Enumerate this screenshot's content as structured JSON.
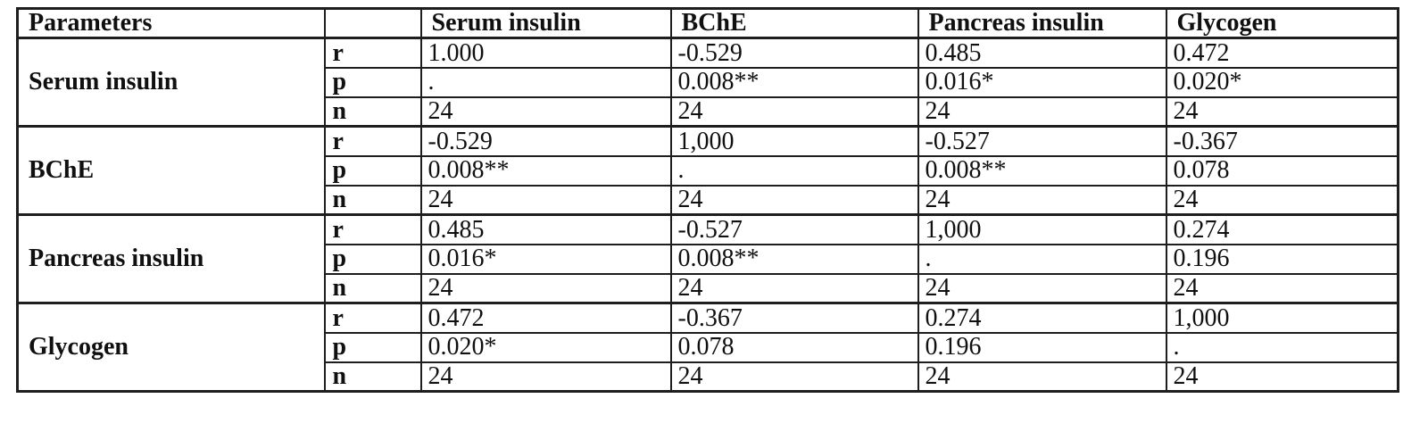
{
  "table": {
    "header": [
      "Parameters",
      "",
      "Serum insulin",
      "BChE",
      "Pancreas insulin",
      "Glycogen"
    ],
    "groups": [
      {
        "parameter": "Serum insulin",
        "rows": [
          {
            "stat": "r",
            "values": [
              "1.000",
              "-0.529",
              "0.485",
              "0.472"
            ]
          },
          {
            "stat": "p",
            "values": [
              ".",
              "0.008**",
              "0.016*",
              "0.020*"
            ]
          },
          {
            "stat": "n",
            "values": [
              "24",
              "24",
              "24",
              "24"
            ]
          }
        ]
      },
      {
        "parameter": "BChE",
        "rows": [
          {
            "stat": "r",
            "values": [
              "-0.529",
              "1,000",
              "-0.527",
              "-0.367"
            ]
          },
          {
            "stat": "p",
            "values": [
              "0.008**",
              ".",
              "0.008**",
              "0.078"
            ]
          },
          {
            "stat": "n",
            "values": [
              "24",
              "24",
              "24",
              "24"
            ]
          }
        ]
      },
      {
        "parameter": "Pancreas insulin",
        "rows": [
          {
            "stat": "r",
            "values": [
              "0.485",
              "-0.527",
              "1,000",
              "0.274"
            ]
          },
          {
            "stat": "p",
            "values": [
              "0.016*",
              "0.008**",
              ".",
              "0.196"
            ]
          },
          {
            "stat": "n",
            "values": [
              "24",
              "24",
              "24",
              "24"
            ]
          }
        ]
      },
      {
        "parameter": "Glycogen",
        "rows": [
          {
            "stat": "r",
            "values": [
              "0.472",
              "-0.367",
              "0.274",
              "1,000"
            ]
          },
          {
            "stat": "p",
            "values": [
              "0.020*",
              "0.078",
              "0.196",
              "."
            ]
          },
          {
            "stat": "n",
            "values": [
              "24",
              "24",
              "24",
              "24"
            ]
          }
        ]
      }
    ]
  },
  "colors": {
    "background": "#ffffff",
    "border": "#1e1e1e",
    "text": "#101010"
  }
}
